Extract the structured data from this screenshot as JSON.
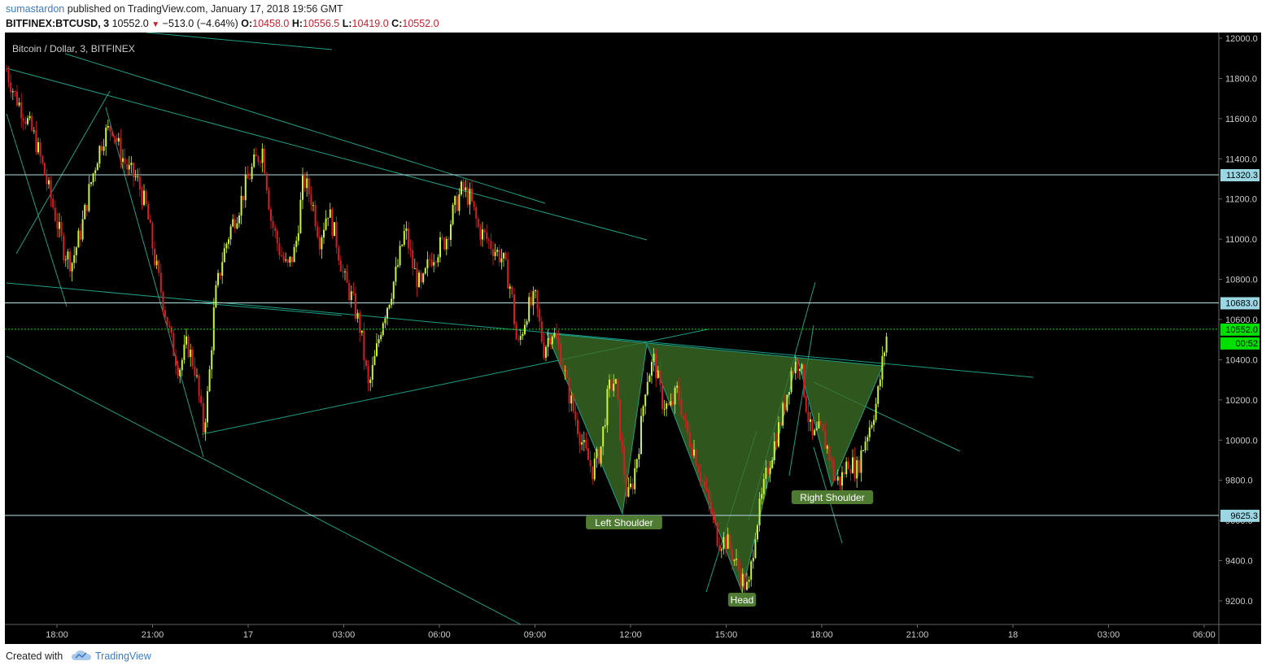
{
  "header": {
    "author": "sumastardon",
    "published_text": "published on TradingView.com, January 17, 2018 19:56 GMT",
    "symbol": "BITFINEX:BTCUSD, 3",
    "last": "10552.0",
    "change": "−513.0 (−4.64%)",
    "o_label": "O:",
    "o_value": "10458.0",
    "h_label": "H:",
    "h_value": "10556.5",
    "l_label": "L:",
    "l_value": "10419.0",
    "c_label": "C:",
    "c_value": "10552.0"
  },
  "footer": {
    "created_with": "Created with",
    "brand": "TradingView"
  },
  "colors": {
    "background": "#000000",
    "up_candle": "#c9f53a",
    "down_candle": "#d41e23",
    "trendline": "#1f9e85",
    "pattern_fill": "#3b6d24",
    "hline": "#b8e0e8",
    "current_price": "#00e000"
  },
  "chart_data": {
    "type": "candlestick",
    "title": "Bitcoin / Dollar, 3, BITFINEX",
    "x_ticks": [
      "18:00",
      "21:00",
      "17",
      "03:00",
      "06:00",
      "09:00",
      "12:00",
      "15:00",
      "18:00",
      "21:00",
      "18",
      "03:00",
      "06:00"
    ],
    "y_ticks": [
      "12000.0",
      "11800.0",
      "11600.0",
      "11400.0",
      "11200.0",
      "11000.0",
      "10800.0",
      "10600.0",
      "10400.0",
      "10200.0",
      "10000.0",
      "9800.0",
      "9600.0",
      "9400.0",
      "9200.0"
    ],
    "ylim": [
      9090,
      12020
    ],
    "price_path": [
      [
        0,
        11840
      ],
      [
        10,
        11720
      ],
      [
        22,
        11620
      ],
      [
        35,
        11500
      ],
      [
        47,
        11320
      ],
      [
        58,
        11150
      ],
      [
        70,
        10950
      ],
      [
        80,
        10880
      ],
      [
        92,
        11050
      ],
      [
        102,
        11250
      ],
      [
        112,
        11420
      ],
      [
        120,
        11520
      ],
      [
        130,
        11560
      ],
      [
        140,
        11430
      ],
      [
        150,
        11340
      ],
      [
        160,
        11300
      ],
      [
        172,
        11150
      ],
      [
        182,
        10900
      ],
      [
        192,
        10700
      ],
      [
        202,
        10500
      ],
      [
        212,
        10350
      ],
      [
        222,
        10480
      ],
      [
        232,
        10350
      ],
      [
        242,
        10050
      ],
      [
        248,
        10250
      ],
      [
        256,
        10700
      ],
      [
        265,
        10900
      ],
      [
        275,
        11050
      ],
      [
        285,
        11150
      ],
      [
        295,
        11280
      ],
      [
        305,
        11380
      ],
      [
        315,
        11450
      ],
      [
        325,
        11100
      ],
      [
        335,
        10950
      ],
      [
        345,
        10850
      ],
      [
        355,
        10950
      ],
      [
        365,
        11300
      ],
      [
        375,
        11200
      ],
      [
        385,
        11000
      ],
      [
        395,
        11150
      ],
      [
        405,
        11000
      ],
      [
        415,
        10800
      ],
      [
        425,
        10700
      ],
      [
        435,
        10550
      ],
      [
        445,
        10250
      ],
      [
        455,
        10450
      ],
      [
        462,
        10600
      ],
      [
        470,
        10700
      ],
      [
        480,
        10850
      ],
      [
        490,
        11050
      ],
      [
        500,
        10850
      ],
      [
        510,
        10750
      ],
      [
        520,
        10900
      ],
      [
        530,
        10950
      ],
      [
        540,
        11000
      ],
      [
        550,
        11150
      ],
      [
        560,
        11250
      ],
      [
        570,
        11200
      ],
      [
        580,
        11050
      ],
      [
        590,
        11000
      ],
      [
        600,
        10950
      ],
      [
        610,
        10900
      ],
      [
        620,
        10750
      ],
      [
        628,
        10450
      ],
      [
        640,
        10650
      ],
      [
        650,
        10700
      ],
      [
        660,
        10450
      ],
      [
        670,
        10550
      ],
      [
        680,
        10450
      ],
      [
        690,
        10250
      ],
      [
        700,
        10100
      ],
      [
        710,
        9950
      ],
      [
        720,
        9850
      ],
      [
        730,
        9950
      ],
      [
        740,
        10250
      ],
      [
        748,
        10300
      ],
      [
        755,
        10000
      ],
      [
        763,
        9700
      ],
      [
        770,
        9800
      ],
      [
        778,
        10000
      ],
      [
        786,
        10300
      ],
      [
        796,
        10400
      ],
      [
        805,
        10200
      ],
      [
        815,
        10150
      ],
      [
        825,
        10250
      ],
      [
        835,
        10050
      ],
      [
        845,
        9950
      ],
      [
        855,
        9800
      ],
      [
        865,
        9650
      ],
      [
        875,
        9500
      ],
      [
        885,
        9500
      ],
      [
        895,
        9400
      ],
      [
        905,
        9300
      ],
      [
        912,
        9250
      ],
      [
        920,
        9550
      ],
      [
        928,
        9700
      ],
      [
        935,
        9850
      ],
      [
        945,
        10000
      ],
      [
        955,
        10150
      ],
      [
        965,
        10350
      ],
      [
        975,
        10400
      ],
      [
        982,
        10200
      ],
      [
        990,
        10000
      ],
      [
        1000,
        10050
      ],
      [
        1010,
        9950
      ],
      [
        1018,
        9800
      ],
      [
        1025,
        9800
      ],
      [
        1035,
        9900
      ],
      [
        1045,
        9850
      ],
      [
        1055,
        10000
      ],
      [
        1063,
        10100
      ],
      [
        1070,
        10200
      ],
      [
        1077,
        10400
      ],
      [
        1083,
        10552
      ]
    ],
    "price_path_x_unit": "pixels from chart left (time axis)",
    "horizontal_levels": [
      {
        "label": "11320.3",
        "value": 11320.3
      },
      {
        "label": "10683.0",
        "value": 10683.0
      },
      {
        "label": "9625.3",
        "value": 9625.3
      }
    ],
    "current_price": {
      "label": "10552.0",
      "value": 10552.0,
      "countdown": "00:52"
    },
    "annotations": [
      {
        "text": "Left Shoulder",
        "value": 9625
      },
      {
        "text": "Head",
        "value": 9250
      },
      {
        "text": "Right Shoulder",
        "value": 9750
      }
    ],
    "pattern": "inverse head and shoulders",
    "grid": false,
    "legend": "top-left"
  }
}
